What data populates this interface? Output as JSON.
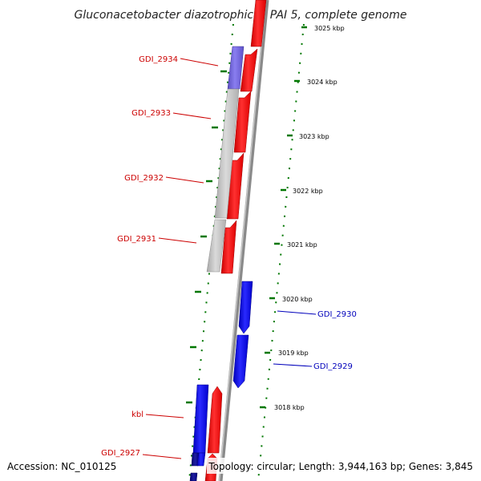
{
  "title": "Gluconacetobacter diazotrophicus PAI 5, complete genome",
  "footer": {
    "accession": "Accession: NC_010125",
    "topology": "Topology: circular; Length: 3,944,163 bp; Genes: 3,845"
  },
  "colors": {
    "forward_gene": "#ff0000",
    "reverse_gene": "#0000ff",
    "hypothetical": "#bdbdbd",
    "purple": "#6a5acd",
    "navy": "#00008b",
    "forward_label": "#cc0000",
    "reverse_label": "#0000bb",
    "tick": "#007700",
    "backbone": "#8a8a8a"
  },
  "ticks": [
    "3025 kbp",
    "3024 kbp",
    "3023 kbp",
    "3022 kbp",
    "3021 kbp",
    "3020 kbp",
    "3019 kbp",
    "3018 kbp"
  ],
  "labels_left": [
    "GDI_2934",
    "GDI_2933",
    "GDI_2932",
    "GDI_2931",
    "kbl",
    "GDI_2927"
  ],
  "labels_right": [
    "GDI_2930",
    "GDI_2929"
  ]
}
